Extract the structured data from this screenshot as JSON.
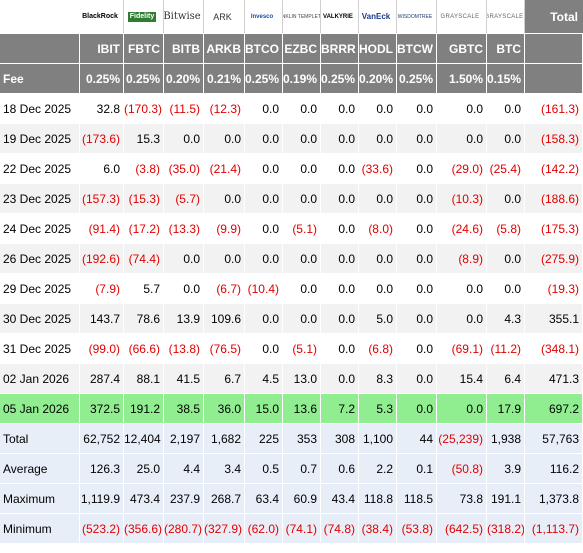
{
  "header": {
    "total_label": "Total",
    "fee_label": "Fee"
  },
  "funds": [
    {
      "ticker": "IBIT",
      "fee": "0.25%",
      "logo": "BlackRock",
      "logo_icon": "blackrock-logo"
    },
    {
      "ticker": "FBTC",
      "fee": "0.25%",
      "logo": "Fidelity",
      "logo_icon": "fidelity-logo"
    },
    {
      "ticker": "BITB",
      "fee": "0.20%",
      "logo": "Bitwise",
      "logo_icon": "bitwise-logo"
    },
    {
      "ticker": "ARKB",
      "fee": "0.21%",
      "logo": "ARK",
      "logo_icon": "ark-logo"
    },
    {
      "ticker": "BTCO",
      "fee": "0.25%",
      "logo": "Invesco",
      "logo_icon": "invesco-logo"
    },
    {
      "ticker": "EZBC",
      "fee": "0.19%",
      "logo": "FRANKLIN TEMPLETON",
      "logo_icon": "franklin-logo"
    },
    {
      "ticker": "BRRR",
      "fee": "0.25%",
      "logo": "VALKYRIE",
      "logo_icon": "valkyrie-logo"
    },
    {
      "ticker": "HODL",
      "fee": "0.20%",
      "logo": "VanEck",
      "logo_icon": "vaneck-logo"
    },
    {
      "ticker": "BTCW",
      "fee": "0.25%",
      "logo": "WISDOMTREE",
      "logo_icon": "wisdomtree-logo"
    },
    {
      "ticker": "GBTC",
      "fee": "1.50%",
      "logo": "GRAYSCALE",
      "logo_icon": "grayscale-logo"
    },
    {
      "ticker": "BTC",
      "fee": "0.15%",
      "logo": "GRAYSCALE",
      "logo_icon": "grayscale-logo"
    }
  ],
  "rows": [
    {
      "date": "18 Dec 2025",
      "values": [
        "32.8",
        "(170.3)",
        "(11.5)",
        "(12.3)",
        "0.0",
        "0.0",
        "0.0",
        "0.0",
        "0.0",
        "0.0",
        "0.0"
      ],
      "total": "(161.3)"
    },
    {
      "date": "19 Dec 2025",
      "values": [
        "(173.6)",
        "15.3",
        "0.0",
        "0.0",
        "0.0",
        "0.0",
        "0.0",
        "0.0",
        "0.0",
        "0.0",
        "0.0"
      ],
      "total": "(158.3)"
    },
    {
      "date": "22 Dec 2025",
      "values": [
        "6.0",
        "(3.8)",
        "(35.0)",
        "(21.4)",
        "0.0",
        "0.0",
        "0.0",
        "(33.6)",
        "0.0",
        "(29.0)",
        "(25.4)"
      ],
      "total": "(142.2)"
    },
    {
      "date": "23 Dec 2025",
      "values": [
        "(157.3)",
        "(15.3)",
        "(5.7)",
        "0.0",
        "0.0",
        "0.0",
        "0.0",
        "0.0",
        "0.0",
        "(10.3)",
        "0.0"
      ],
      "total": "(188.6)"
    },
    {
      "date": "24 Dec 2025",
      "values": [
        "(91.4)",
        "(17.2)",
        "(13.3)",
        "(9.9)",
        "0.0",
        "(5.1)",
        "0.0",
        "(8.0)",
        "0.0",
        "(24.6)",
        "(5.8)"
      ],
      "total": "(175.3)"
    },
    {
      "date": "26 Dec 2025",
      "values": [
        "(192.6)",
        "(74.4)",
        "0.0",
        "0.0",
        "0.0",
        "0.0",
        "0.0",
        "0.0",
        "0.0",
        "(8.9)",
        "0.0"
      ],
      "total": "(275.9)"
    },
    {
      "date": "29 Dec 2025",
      "values": [
        "(7.9)",
        "5.7",
        "0.0",
        "(6.7)",
        "(10.4)",
        "0.0",
        "0.0",
        "0.0",
        "0.0",
        "0.0",
        "0.0"
      ],
      "total": "(19.3)"
    },
    {
      "date": "30 Dec 2025",
      "values": [
        "143.7",
        "78.6",
        "13.9",
        "109.6",
        "0.0",
        "0.0",
        "0.0",
        "5.0",
        "0.0",
        "0.0",
        "4.3"
      ],
      "total": "355.1"
    },
    {
      "date": "31 Dec 2025",
      "values": [
        "(99.0)",
        "(66.6)",
        "(13.8)",
        "(76.5)",
        "0.0",
        "(5.1)",
        "0.0",
        "(6.8)",
        "0.0",
        "(69.1)",
        "(11.2)"
      ],
      "total": "(348.1)"
    },
    {
      "date": "02 Jan 2026",
      "values": [
        "287.4",
        "88.1",
        "41.5",
        "6.7",
        "4.5",
        "13.0",
        "0.0",
        "8.3",
        "0.0",
        "15.4",
        "6.4"
      ],
      "total": "471.3"
    },
    {
      "date": "05 Jan 2026",
      "values": [
        "372.5",
        "191.2",
        "38.5",
        "36.0",
        "15.0",
        "13.6",
        "7.2",
        "5.3",
        "0.0",
        "0.0",
        "17.9"
      ],
      "total": "697.2",
      "highlight": true
    }
  ],
  "summary": [
    {
      "label": "Total",
      "values": [
        "62,752",
        "12,404",
        "2,197",
        "1,682",
        "225",
        "353",
        "308",
        "1,100",
        "44",
        "(25,239)",
        "1,938"
      ],
      "total": "57,763"
    },
    {
      "label": "Average",
      "values": [
        "126.3",
        "25.0",
        "4.4",
        "3.4",
        "0.5",
        "0.7",
        "0.6",
        "2.2",
        "0.1",
        "(50.8)",
        "3.9"
      ],
      "total": "116.2"
    },
    {
      "label": "Maximum",
      "values": [
        "1,119.9",
        "473.4",
        "237.9",
        "268.7",
        "63.4",
        "60.9",
        "43.4",
        "118.8",
        "118.5",
        "73.8",
        "191.1"
      ],
      "total": "1,373.8"
    },
    {
      "label": "Minimum",
      "values": [
        "(523.2)",
        "(356.6)",
        "(280.7)",
        "(327.9)",
        "(62.0)",
        "(74.1)",
        "(74.8)",
        "(38.4)",
        "(53.8)",
        "(642.5)",
        "(318.2)"
      ],
      "total": "(1,113.7)"
    }
  ],
  "colors": {
    "header_bg": "#808080",
    "negative": "#e00000",
    "highlight": "#90ee90",
    "summary_bg": "#e8eef8"
  }
}
